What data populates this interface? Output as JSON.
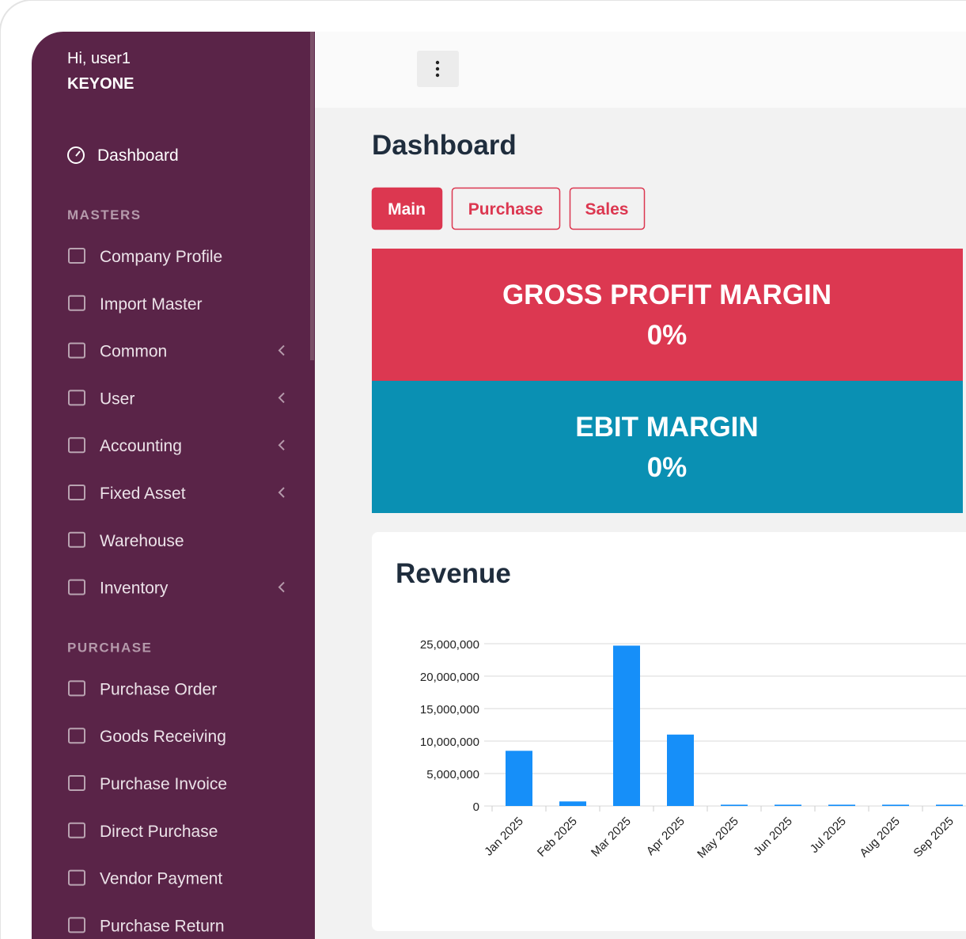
{
  "sidebar": {
    "greeting": "Hi, user1",
    "company": "KEYONE",
    "dashboard": "Dashboard",
    "sections": [
      {
        "title": "MASTERS",
        "items": [
          {
            "label": "Company Profile",
            "submenu": false
          },
          {
            "label": "Import Master",
            "submenu": false
          },
          {
            "label": "Common",
            "submenu": true
          },
          {
            "label": "User",
            "submenu": true
          },
          {
            "label": "Accounting",
            "submenu": true
          },
          {
            "label": "Fixed Asset",
            "submenu": true
          },
          {
            "label": "Warehouse",
            "submenu": false
          },
          {
            "label": "Inventory",
            "submenu": true
          }
        ]
      },
      {
        "title": "PURCHASE",
        "items": [
          {
            "label": "Purchase Order",
            "submenu": false
          },
          {
            "label": "Goods Receiving",
            "submenu": false
          },
          {
            "label": "Purchase Invoice",
            "submenu": false
          },
          {
            "label": "Direct Purchase",
            "submenu": false
          },
          {
            "label": "Vendor Payment",
            "submenu": false
          },
          {
            "label": "Purchase Return",
            "submenu": false
          }
        ]
      }
    ]
  },
  "header": {
    "title": "Dashboard",
    "tabs": [
      "Main",
      "Purchase",
      "Sales"
    ]
  },
  "kpis": [
    {
      "label": "GROSS PROFIT MARGIN",
      "value": "0%",
      "color": "#dc3851"
    },
    {
      "label": "EBIT MARGIN",
      "value": "0%",
      "color": "#0a90b3"
    }
  ],
  "chart_data": {
    "type": "bar",
    "title": "Revenue",
    "categories": [
      "Jan 2025",
      "Feb 2025",
      "Mar 2025",
      "Apr 2025",
      "May 2025",
      "Jun 2025",
      "Jul 2025",
      "Aug 2025",
      "Sep 2025"
    ],
    "values": [
      8500000,
      700000,
      24700000,
      11000000,
      200000,
      200000,
      200000,
      200000,
      200000
    ],
    "color": "#168ff9",
    "ylim": [
      0,
      25000000
    ],
    "yticks": [
      {
        "value": 0,
        "label": "0"
      },
      {
        "value": 5000000,
        "label": "5,000,000"
      },
      {
        "value": 10000000,
        "label": "10,000,000"
      },
      {
        "value": 15000000,
        "label": "15,000,000"
      },
      {
        "value": 20000000,
        "label": "20,000,000"
      },
      {
        "value": 25000000,
        "label": "25,000,000"
      }
    ],
    "grid": true
  }
}
